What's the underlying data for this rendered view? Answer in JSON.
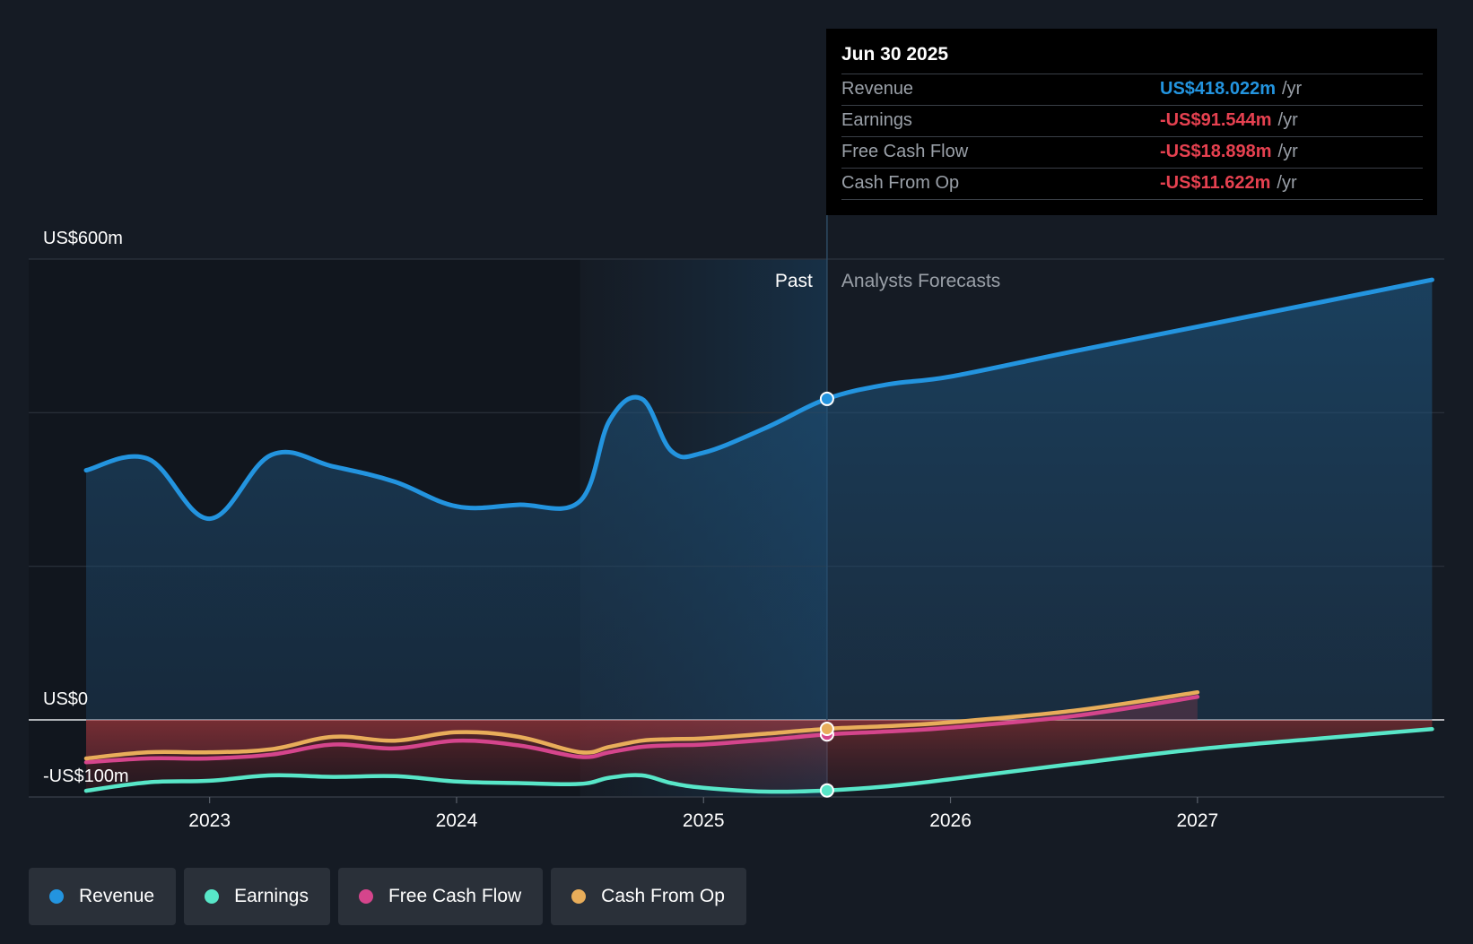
{
  "chart_data": {
    "type": "line",
    "y_unit_labels": {
      "top": "US$600m",
      "zero": "US$0",
      "bottom": "-US$100m"
    },
    "ylim": [
      -100,
      600
    ],
    "xlim": [
      2022.5,
      2027.95
    ],
    "x_ticks": [
      2023,
      2024,
      2025,
      2026,
      2027
    ],
    "x_tick_labels": [
      "2023",
      "2024",
      "2025",
      "2026",
      "2027"
    ],
    "grid": true,
    "regions": {
      "past_label": "Past",
      "forecast_label": "Analysts Forecasts",
      "past_start": 2024.5,
      "divider": 2025.5
    },
    "series": [
      {
        "name": "Revenue",
        "color": "#2394df",
        "area": true,
        "x": [
          2022.5,
          2022.75,
          2023.0,
          2023.25,
          2023.5,
          2023.75,
          2024.0,
          2024.25,
          2024.5,
          2024.62,
          2024.75,
          2024.87,
          2025.0,
          2025.25,
          2025.5,
          2025.75,
          2026.0,
          2026.5,
          2027.0,
          2027.5,
          2027.95
        ],
        "y": [
          325,
          340,
          262,
          345,
          330,
          310,
          278,
          280,
          285,
          390,
          418,
          350,
          348,
          380,
          418,
          437,
          447,
          480,
          512,
          544,
          573
        ]
      },
      {
        "name": "Earnings",
        "color": "#58e6c8",
        "area": true,
        "x": [
          2022.5,
          2022.75,
          2023.0,
          2023.25,
          2023.5,
          2023.75,
          2024.0,
          2024.25,
          2024.5,
          2024.62,
          2024.75,
          2024.87,
          2025.0,
          2025.25,
          2025.5,
          2025.75,
          2026.0,
          2026.5,
          2027.0,
          2027.5,
          2027.95
        ],
        "y": [
          -92,
          -81,
          -79,
          -72,
          -74,
          -73,
          -80,
          -82,
          -83,
          -75,
          -72,
          -82,
          -88,
          -93,
          -91.5,
          -86,
          -77,
          -57,
          -38,
          -24,
          -12
        ]
      },
      {
        "name": "Free Cash Flow",
        "color": "#d5458c",
        "area": true,
        "x": [
          2022.5,
          2022.75,
          2023.0,
          2023.25,
          2023.5,
          2023.75,
          2024.0,
          2024.25,
          2024.5,
          2024.62,
          2024.75,
          2024.87,
          2025.0,
          2025.25,
          2025.5,
          2025.75,
          2026.0,
          2026.5,
          2027.0
        ],
        "y": [
          -55,
          -50,
          -50,
          -45,
          -32,
          -37,
          -27,
          -33,
          -48,
          -42,
          -35,
          -33,
          -32,
          -26,
          -18.9,
          -15,
          -10,
          5,
          30
        ]
      },
      {
        "name": "Cash From Op",
        "color": "#e8ad5a",
        "area": true,
        "x": [
          2022.5,
          2022.75,
          2023.0,
          2023.25,
          2023.5,
          2023.75,
          2024.0,
          2024.25,
          2024.5,
          2024.62,
          2024.75,
          2024.87,
          2025.0,
          2025.25,
          2025.5,
          2025.75,
          2026.0,
          2026.5,
          2027.0
        ],
        "y": [
          -50,
          -42,
          -42,
          -38,
          -22,
          -27,
          -16,
          -22,
          -42,
          -35,
          -27,
          -25,
          -24,
          -18,
          -11.6,
          -8,
          -3,
          12,
          36
        ]
      }
    ],
    "highlight_x": 2025.5
  },
  "tooltip": {
    "date": "Jun 30 2025",
    "rows": [
      {
        "label": "Revenue",
        "value": "US$418.022m",
        "unit": "/yr",
        "color": "#2394df"
      },
      {
        "label": "Earnings",
        "value": "-US$91.544m",
        "unit": "/yr",
        "color": "#e64150"
      },
      {
        "label": "Free Cash Flow",
        "value": "-US$18.898m",
        "unit": "/yr",
        "color": "#e64150"
      },
      {
        "label": "Cash From Op",
        "value": "-US$11.622m",
        "unit": "/yr",
        "color": "#e64150"
      }
    ]
  },
  "legend": {
    "items": [
      {
        "label": "Revenue",
        "color": "#2394df"
      },
      {
        "label": "Earnings",
        "color": "#58e6c8"
      },
      {
        "label": "Free Cash Flow",
        "color": "#d5458c"
      },
      {
        "label": "Cash From Op",
        "color": "#e8ad5a"
      }
    ]
  }
}
